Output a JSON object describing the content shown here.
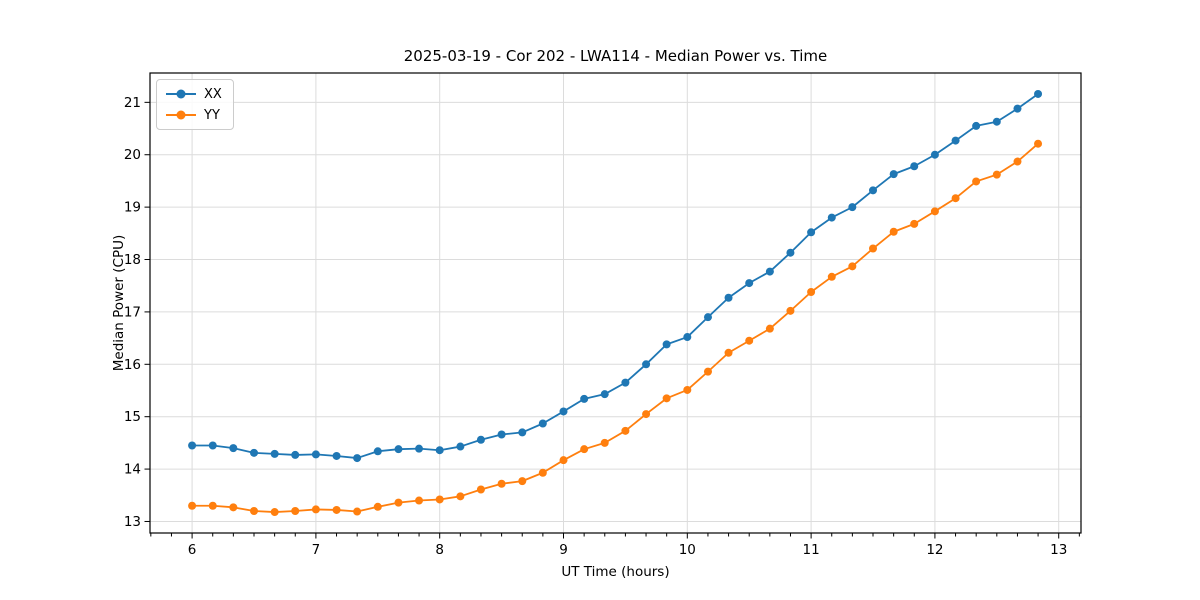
{
  "chart_data": {
    "type": "line",
    "title": "2025-03-19 - Cor 202 - LWA114 - Median Power vs. Time",
    "xlabel": "UT Time (hours)",
    "ylabel": "Median Power (CPU)",
    "xlim": [
      5.66,
      13.18
    ],
    "ylim": [
      12.78,
      21.56
    ],
    "xticks": [
      6,
      7,
      8,
      9,
      10,
      11,
      12,
      13
    ],
    "yticks": [
      13,
      14,
      15,
      16,
      17,
      18,
      19,
      20,
      21
    ],
    "x_minor_per_major": 6,
    "grid": true,
    "legend_position": "upper-left",
    "marker": "circle",
    "x": [
      6.0,
      6.167,
      6.333,
      6.5,
      6.667,
      6.833,
      7.0,
      7.167,
      7.333,
      7.5,
      7.667,
      7.833,
      8.0,
      8.167,
      8.333,
      8.5,
      8.667,
      8.833,
      9.0,
      9.167,
      9.333,
      9.5,
      9.667,
      9.833,
      10.0,
      10.167,
      10.333,
      10.5,
      10.667,
      10.833,
      11.0,
      11.167,
      11.333,
      11.5,
      11.667,
      11.833,
      12.0,
      12.167,
      12.333,
      12.5,
      12.667,
      12.833
    ],
    "series": [
      {
        "name": "XX",
        "color": "#1f77b4",
        "values": [
          14.45,
          14.45,
          14.4,
          14.31,
          14.29,
          14.27,
          14.28,
          14.25,
          14.21,
          14.34,
          14.38,
          14.39,
          14.36,
          14.43,
          14.56,
          14.66,
          14.7,
          14.87,
          15.1,
          15.34,
          15.43,
          15.65,
          16.0,
          16.38,
          16.52,
          16.9,
          17.27,
          17.55,
          17.77,
          18.13,
          18.52,
          18.8,
          19.0,
          19.32,
          19.63,
          19.78,
          20.0,
          20.27,
          20.55,
          20.63,
          20.88,
          21.16
        ]
      },
      {
        "name": "YY",
        "color": "#ff7f0e",
        "values": [
          13.3,
          13.3,
          13.27,
          13.2,
          13.18,
          13.2,
          13.23,
          13.22,
          13.19,
          13.28,
          13.36,
          13.4,
          13.42,
          13.48,
          13.61,
          13.72,
          13.77,
          13.93,
          14.17,
          14.38,
          14.5,
          14.73,
          15.05,
          15.35,
          15.51,
          15.86,
          16.22,
          16.45,
          16.68,
          17.02,
          17.38,
          17.67,
          17.87,
          18.21,
          18.53,
          18.68,
          18.92,
          19.17,
          19.49,
          19.62,
          19.87,
          20.21
        ]
      }
    ],
    "style": {
      "grid_color": "#dcdcdc",
      "spine_color": "#000000",
      "tick_color": "#000000",
      "text_color": "#000000",
      "background": "#ffffff"
    }
  }
}
